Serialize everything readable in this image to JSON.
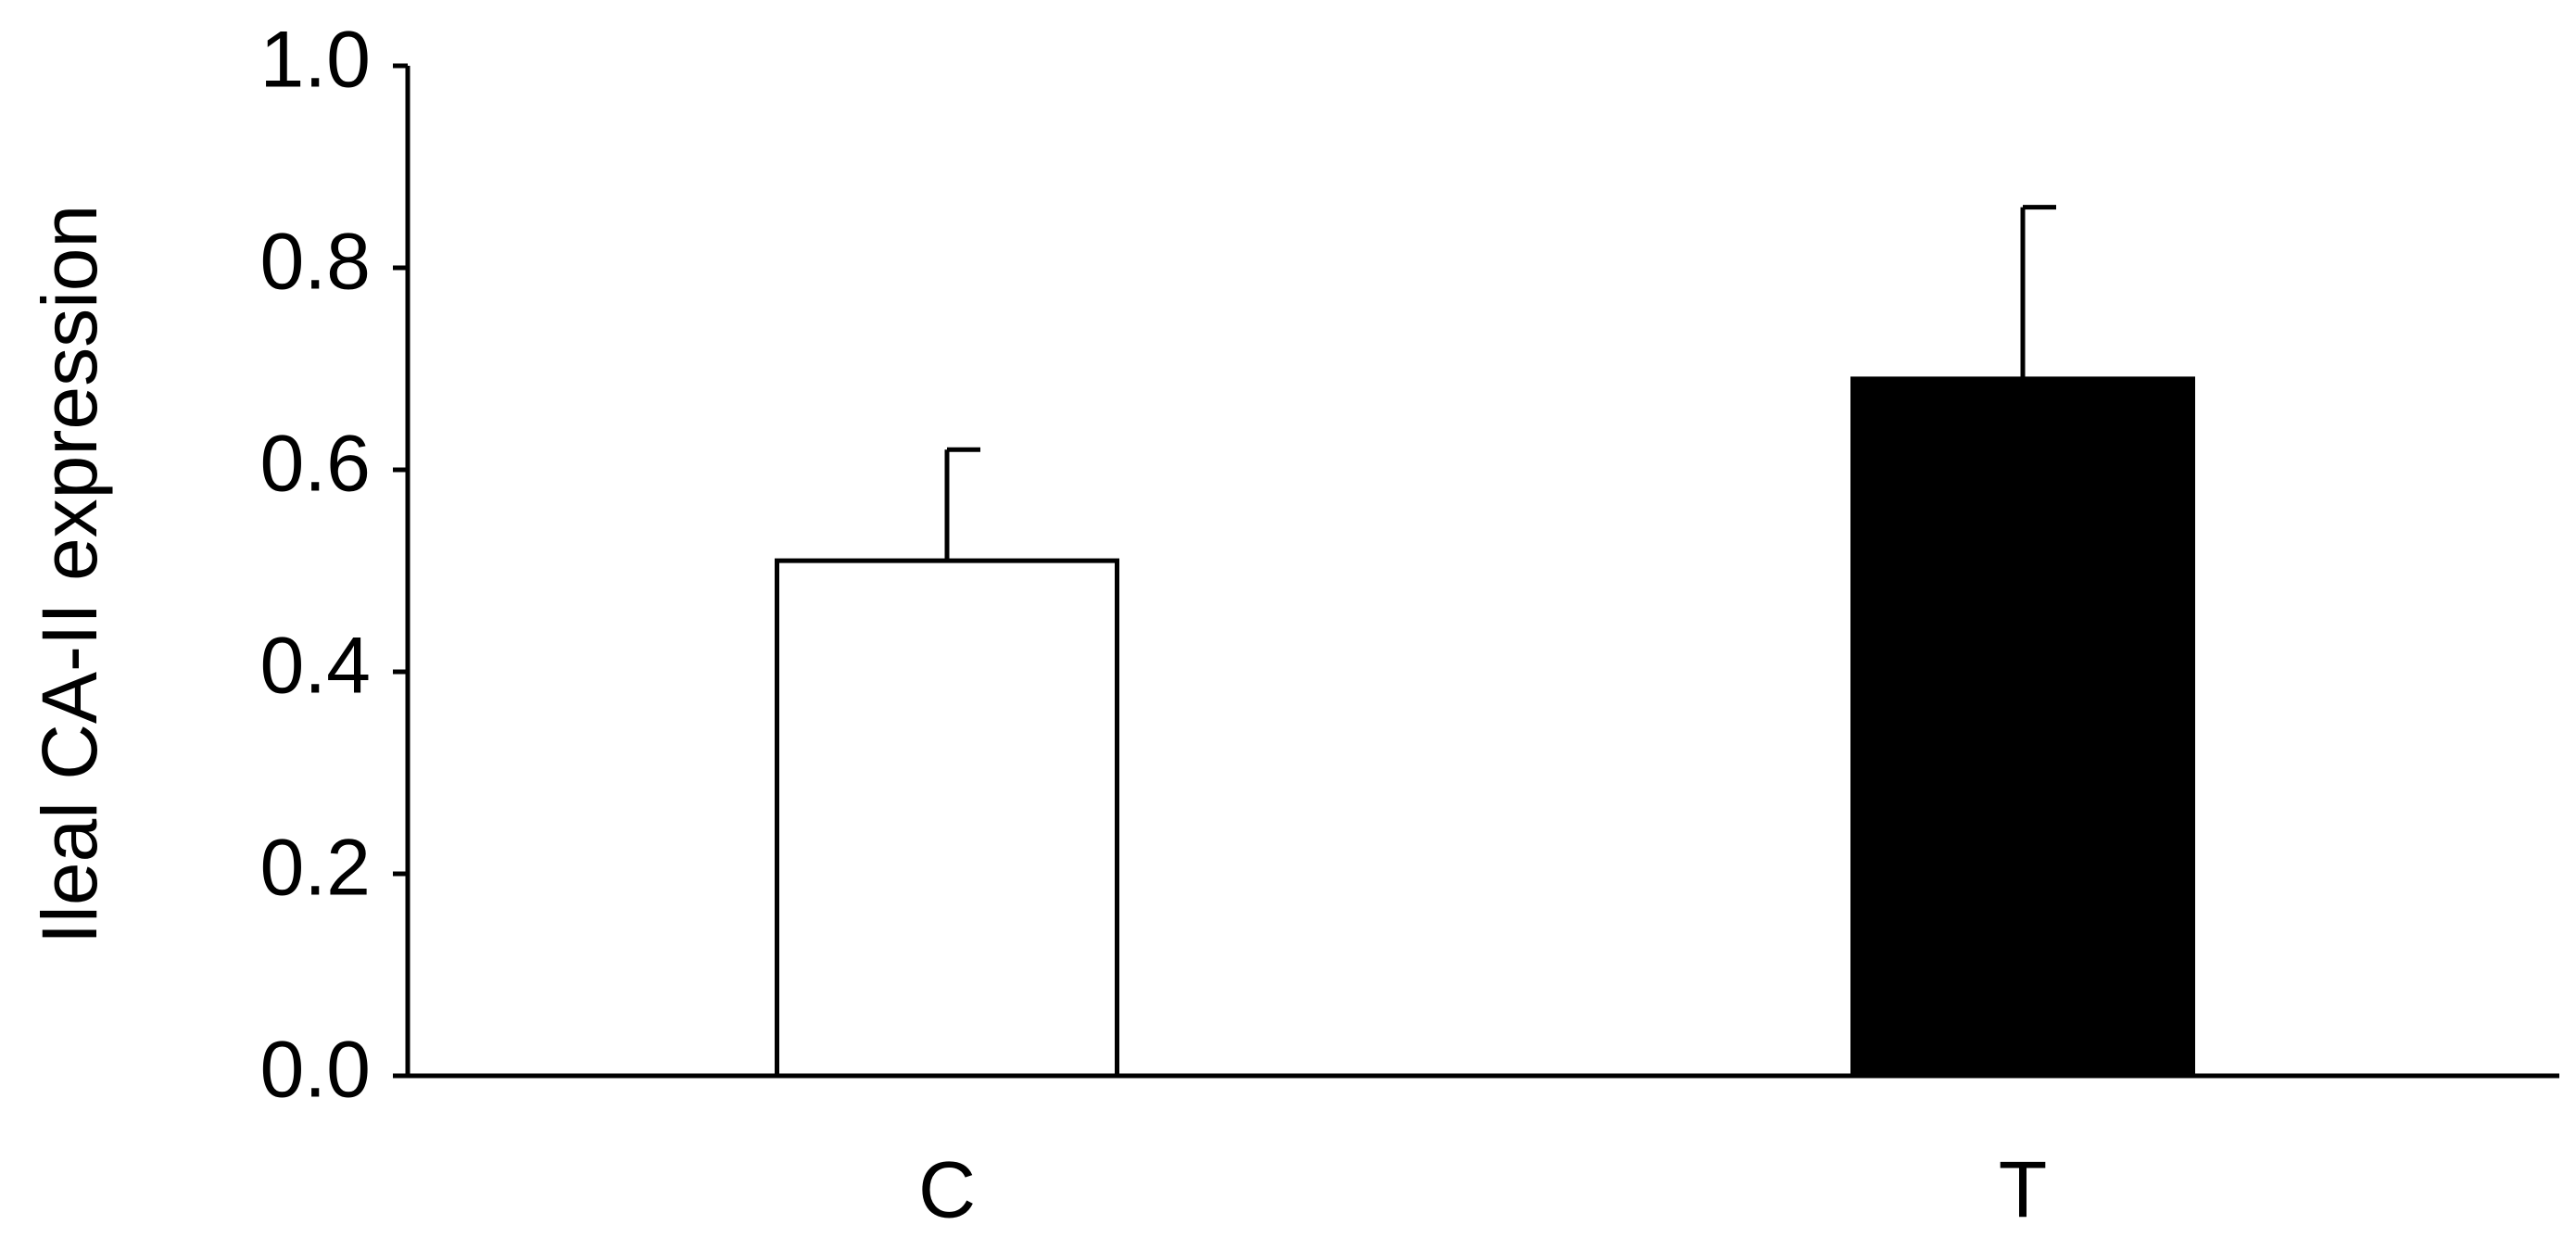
{
  "chart_data": {
    "type": "bar",
    "ylabel": "Ileal CA-II expression",
    "categories": [
      "C",
      "T"
    ],
    "values": [
      0.51,
      0.69
    ],
    "errors": [
      0.11,
      0.17
    ],
    "colors": [
      "#ffffff",
      "#000000"
    ],
    "ylim": [
      0,
      1
    ],
    "yticks": [
      {
        "value": 0,
        "label": "0.0"
      },
      0.2,
      0.4,
      0.6,
      0.8,
      {
        "value": 1,
        "label": "1.0"
      }
    ],
    "grid": false
  }
}
